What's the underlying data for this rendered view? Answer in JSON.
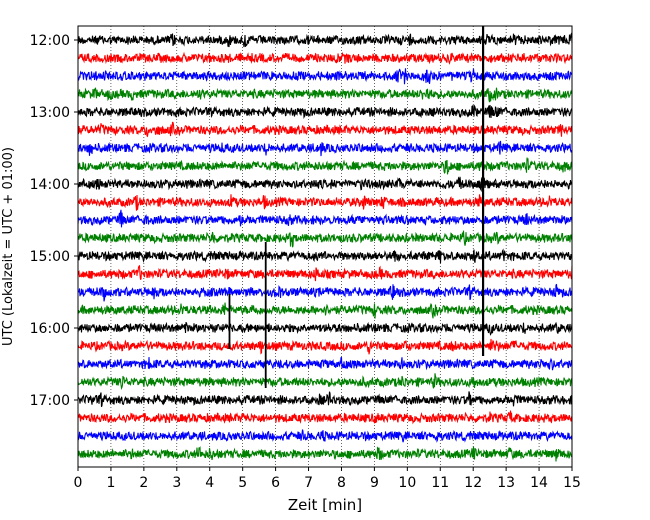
{
  "chart_data": {
    "type": "line",
    "title": "",
    "xlabel": "Zeit  [min]",
    "ylabel": "UTC (Lokalzeit = UTC + 01:00)",
    "xlim": [
      0,
      15
    ],
    "x_ticks": [
      "0",
      "1",
      "2",
      "3",
      "4",
      "5",
      "6",
      "7",
      "8",
      "9",
      "10",
      "11",
      "12",
      "13",
      "14",
      "15"
    ],
    "y_ticks": [
      "12:00",
      "13:00",
      "14:00",
      "15:00",
      "16:00",
      "17:00"
    ],
    "grid": {
      "x": "dotted vertical at each minute",
      "y": false
    },
    "trace_interval_min": 15,
    "trace_colors": [
      "#000000",
      "#ff0000",
      "#0000ff",
      "#008000"
    ],
    "series": [
      {
        "start": "12:00"
      },
      {
        "start": "12:15"
      },
      {
        "start": "12:30"
      },
      {
        "start": "12:45"
      },
      {
        "start": "13:00"
      },
      {
        "start": "13:15"
      },
      {
        "start": "13:30"
      },
      {
        "start": "13:45"
      },
      {
        "start": "14:00"
      },
      {
        "start": "14:15"
      },
      {
        "start": "14:30"
      },
      {
        "start": "14:45"
      },
      {
        "start": "15:00"
      },
      {
        "start": "15:15"
      },
      {
        "start": "15:30"
      },
      {
        "start": "15:45"
      },
      {
        "start": "16:00"
      },
      {
        "start": "16:15"
      },
      {
        "start": "16:30"
      },
      {
        "start": "16:45"
      },
      {
        "start": "17:00"
      },
      {
        "start": "17:15"
      },
      {
        "start": "17:30"
      },
      {
        "start": "17:45"
      }
    ],
    "events": [
      {
        "trace": "14:00",
        "minute": 12.3,
        "amplitude": "large, spans approx. 12:00–16:30"
      },
      {
        "trace": "15:45",
        "minute": 4.6,
        "amplitude": "large"
      },
      {
        "trace": "16:00",
        "minute": 5.7,
        "amplitude": "large"
      }
    ]
  }
}
